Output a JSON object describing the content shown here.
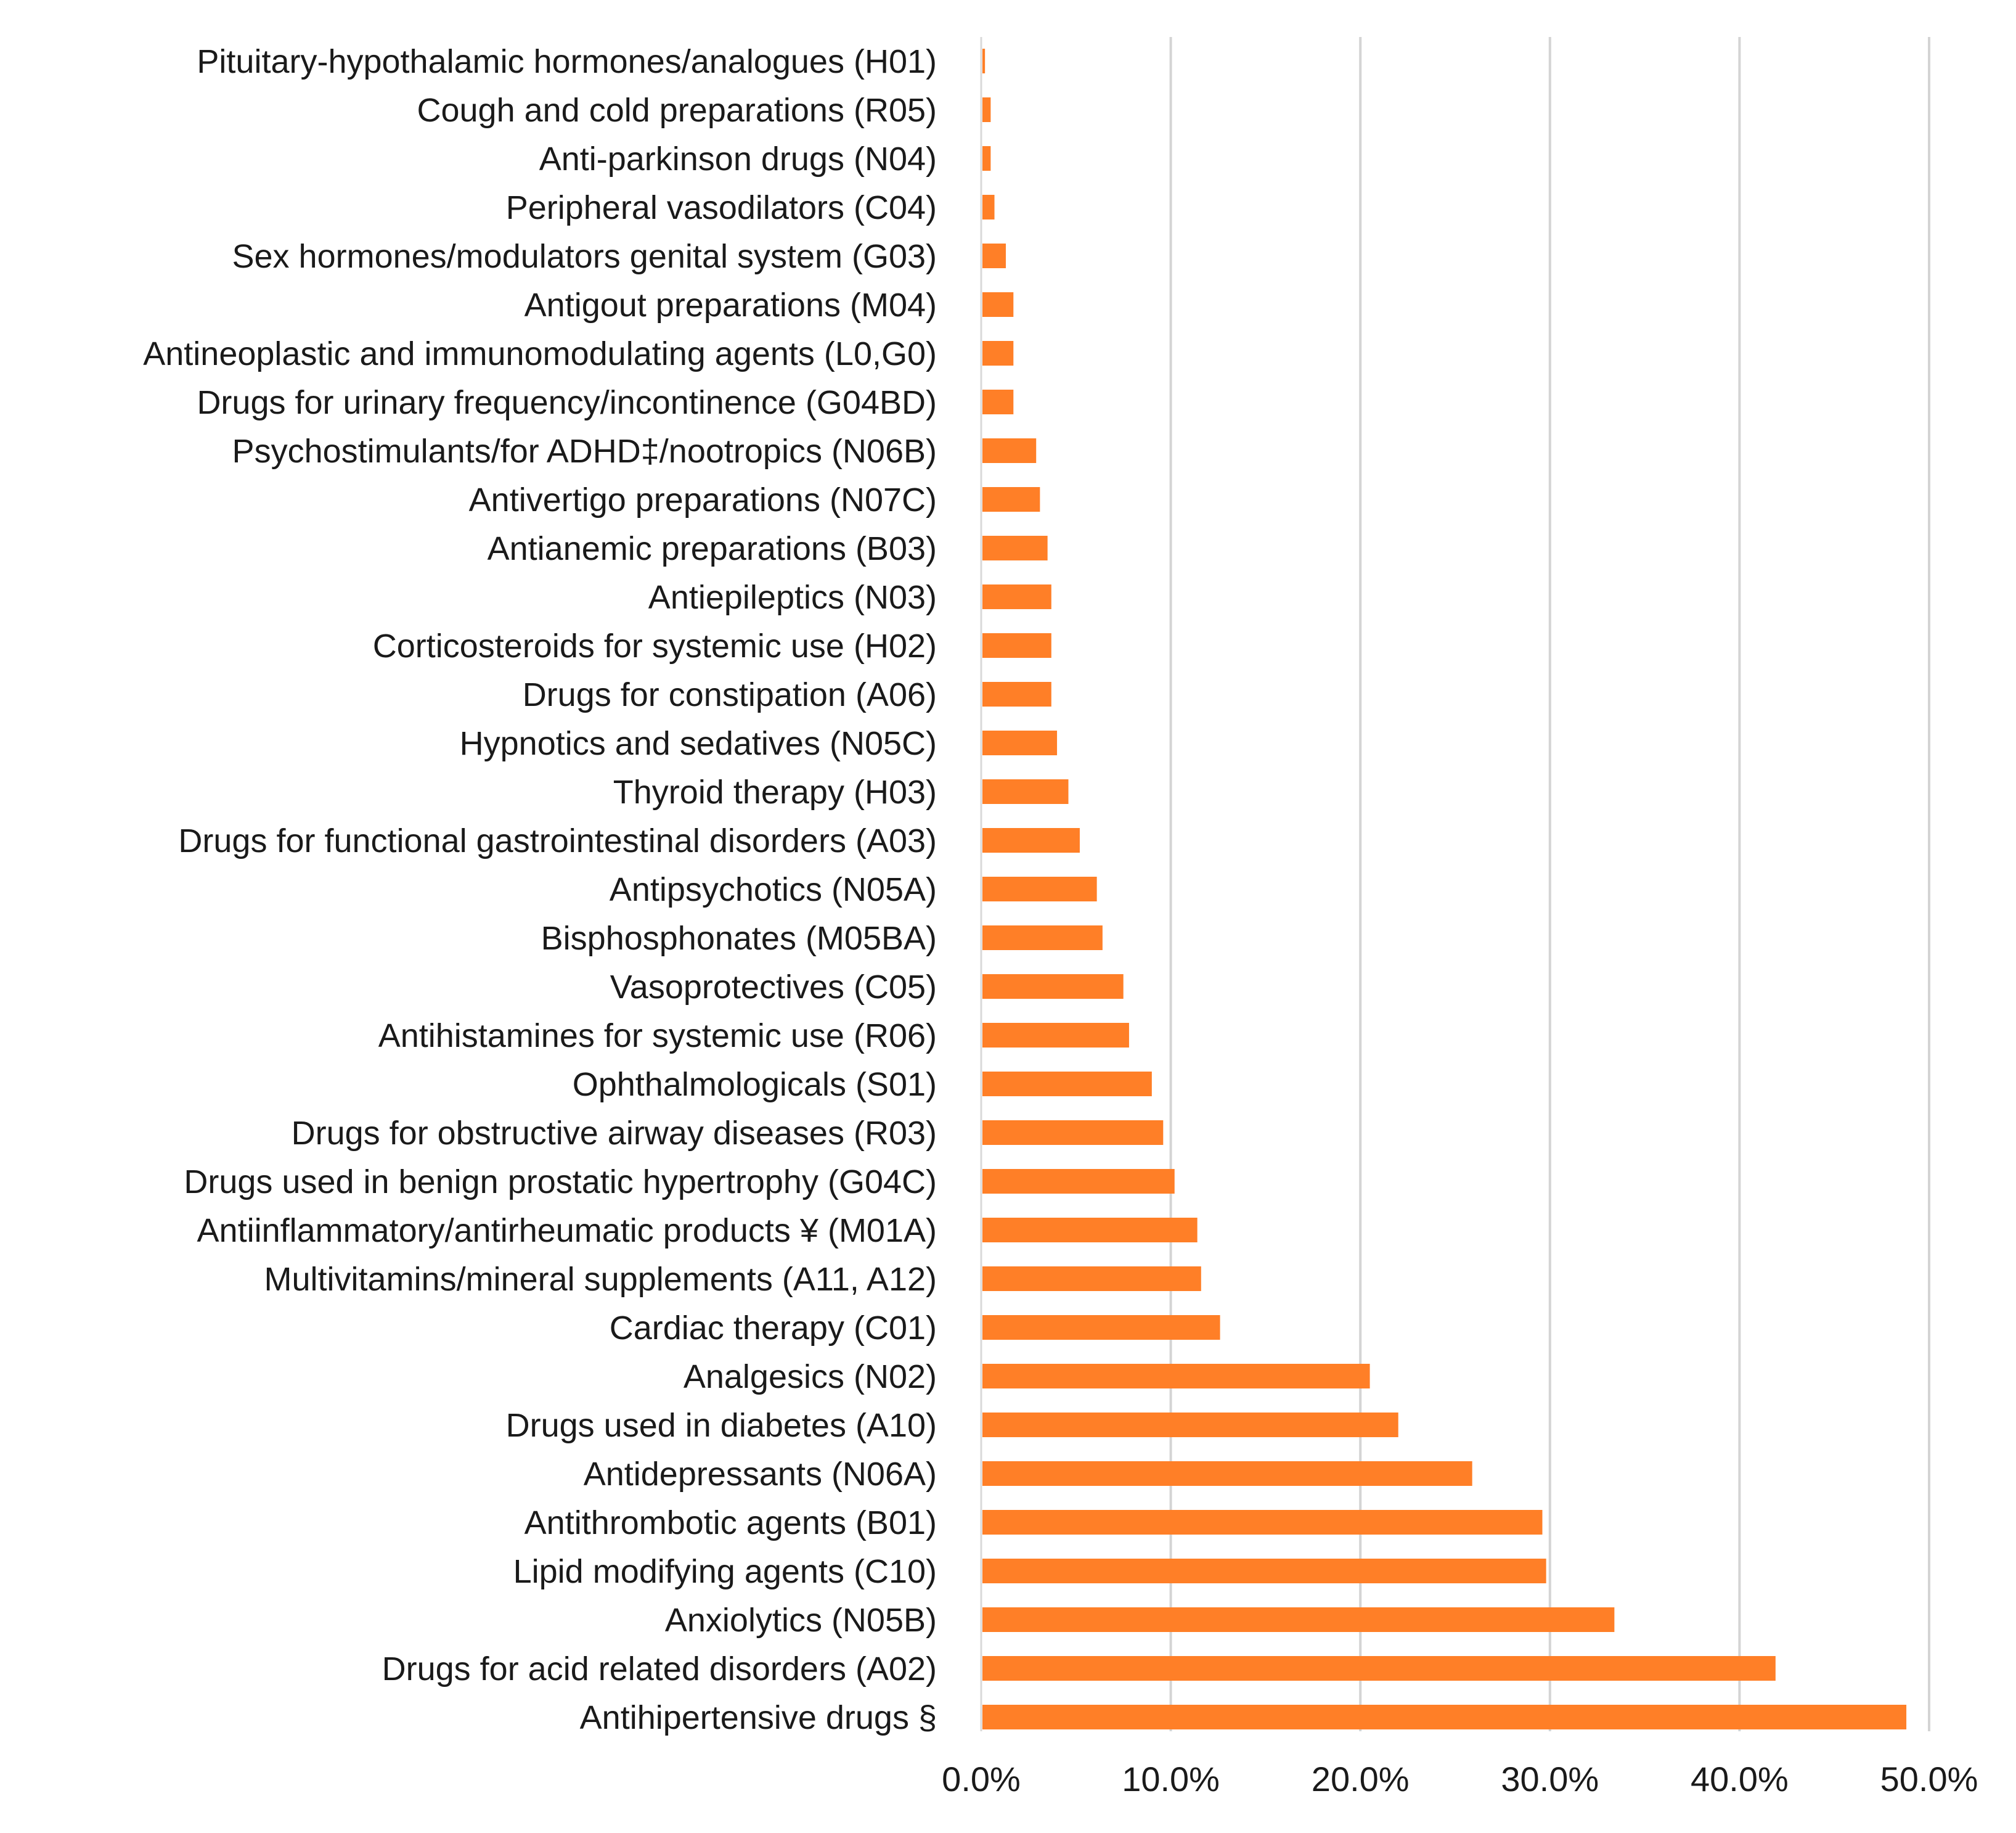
{
  "chart_data": {
    "type": "bar",
    "orientation": "horizontal",
    "title": "",
    "xlabel": "",
    "ylabel": "",
    "xlim": [
      0,
      50
    ],
    "grid": true,
    "bar_color": "#FF7F27",
    "x_ticks": [
      "0.0%",
      "10.0%",
      "20.0%",
      "30.0%",
      "40.0%",
      "50.0%"
    ],
    "x_tick_values": [
      0,
      10,
      20,
      30,
      40,
      50
    ],
    "categories": [
      "Pituitary-hypothalamic hormones/analogues (H01)",
      "Cough and cold preparations (R05)",
      "Anti-parkinson drugs (N04)",
      "Peripheral vasodilators (C04)",
      "Sex hormones/modulators genital system (G03)",
      "Antigout preparations (M04)",
      "Antineoplastic and immunomodulating agents (L0,G0)",
      "Drugs for urinary frequency/incontinence (G04BD)",
      "Psychostimulants/for ADHD‡/nootropics (N06B)",
      "Antivertigo preparations (N07C)",
      "Antianemic preparations (B03)",
      "Antiepileptics (N03)",
      "Corticosteroids for systemic use (H02)",
      "Drugs for constipation (A06)",
      "Hypnotics and sedatives (N05C)",
      "Thyroid therapy (H03)",
      "Drugs for functional gastrointestinal disorders (A03)",
      "Antipsychotics (N05A)",
      "Bisphosphonates (M05BA)",
      "Vasoprotectives (C05)",
      "Antihistamines for systemic use (R06)",
      "Ophthalmologicals (S01)",
      "Drugs for obstructive airway diseases  (R03)",
      "Drugs used in benign prostatic hypertrophy (G04C)",
      "Antiinflammatory/antirheumatic products ¥ (M01A)",
      "Multivitamins/mineral supplements (A11, A12)",
      "Cardiac therapy (C01)",
      "Analgesics (N02)",
      "Drugs used in diabetes (A10)",
      "Antidepressants (N06A)",
      "Antithrombotic agents (B01)",
      "Lipid modifying agents (C10)",
      "Anxiolytics (N05B)",
      "Drugs for acid related disorders (A02)",
      "Antihipertensive drugs §"
    ],
    "values": [
      0.2,
      0.5,
      0.5,
      0.7,
      1.3,
      1.7,
      1.7,
      1.7,
      2.9,
      3.1,
      3.5,
      3.7,
      3.7,
      3.7,
      4.0,
      4.6,
      5.2,
      6.1,
      6.4,
      7.5,
      7.8,
      9.0,
      9.6,
      10.2,
      11.4,
      11.6,
      12.6,
      20.5,
      22.0,
      25.9,
      29.6,
      29.8,
      33.4,
      41.9,
      48.8
    ]
  }
}
